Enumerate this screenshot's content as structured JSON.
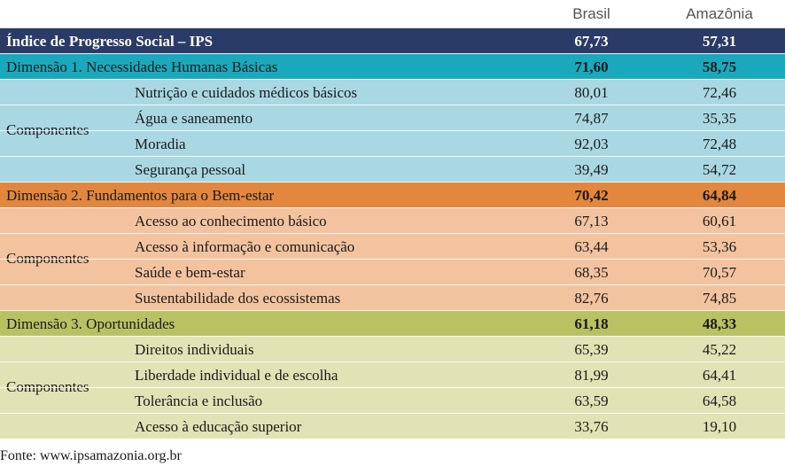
{
  "header": {
    "col_brasil": "Brasil",
    "col_amazonia": "Amazônia"
  },
  "total": {
    "label": "Índice de Progresso Social – IPS",
    "brasil": "67,73",
    "amazonia": "57,31"
  },
  "groups": [
    {
      "dimension": {
        "label": "Dimensão 1. Necessidades Humanas Básicas",
        "brasil": "71,60",
        "amazonia": "58,75"
      },
      "components_label": "Componentes",
      "components": [
        {
          "label": "Nutrição e cuidados médicos básicos",
          "brasil": "80,01",
          "amazonia": "72,46"
        },
        {
          "label": "Água e saneamento",
          "brasil": "74,87",
          "amazonia": "35,35"
        },
        {
          "label": "Moradia",
          "brasil": "92,03",
          "amazonia": "72,48"
        },
        {
          "label": "Segurança pessoal",
          "brasil": "39,49",
          "amazonia": "54,72"
        }
      ]
    },
    {
      "dimension": {
        "label": "Dimensão 2. Fundamentos para o Bem-estar",
        "brasil": "70,42",
        "amazonia": "64,84"
      },
      "components_label": "Componentes",
      "components": [
        {
          "label": "Acesso ao conhecimento básico",
          "brasil": "67,13",
          "amazonia": "60,61"
        },
        {
          "label": "Acesso à informação e comunicação",
          "brasil": "63,44",
          "amazonia": "53,36"
        },
        {
          "label": "Saúde e bem-estar",
          "brasil": "68,35",
          "amazonia": "70,57"
        },
        {
          "label": "Sustentabilidade dos ecossistemas",
          "brasil": "82,76",
          "amazonia": "74,85"
        }
      ]
    },
    {
      "dimension": {
        "label": "Dimensão 3. Oportunidades",
        "brasil": "61,18",
        "amazonia": "48,33"
      },
      "components_label": "Componentes",
      "components": [
        {
          "label": "Direitos individuais",
          "brasil": "65,39",
          "amazonia": "45,22"
        },
        {
          "label": "Liberdade individual e de escolha",
          "brasil": "81,99",
          "amazonia": "64,41"
        },
        {
          "label": "Tolerância e inclusão",
          "brasil": "63,59",
          "amazonia": "64,58"
        },
        {
          "label": "Acesso à educação superior",
          "brasil": "33,76",
          "amazonia": "19,10"
        }
      ]
    }
  ],
  "colors": {
    "total": "#2a3b68",
    "dim1": "#1aa9bc",
    "comp1": "#a9d8e3",
    "dim2": "#e2873d",
    "comp2": "#f3c39f",
    "dim3": "#b9c263",
    "comp3": "#e0e3b4"
  },
  "footer": {
    "source": "Fonte: www.ipsamazonia.org.br"
  }
}
